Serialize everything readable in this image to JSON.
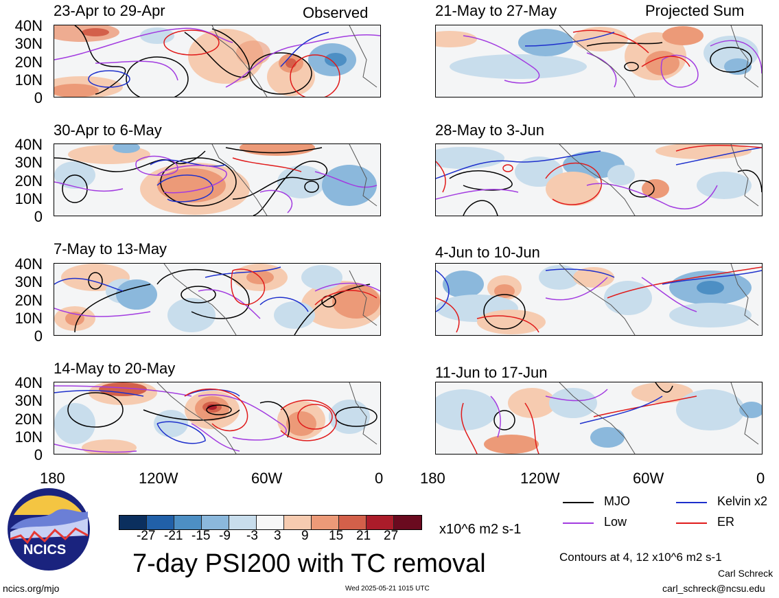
{
  "header": {
    "observed_label": "Observed",
    "projected_label": "Projected Sum"
  },
  "panels": [
    {
      "title": "23-Apr to 29-Apr",
      "column": "observed"
    },
    {
      "title": "30-Apr to 6-May",
      "column": "observed"
    },
    {
      "title": "7-May to 13-May",
      "column": "observed"
    },
    {
      "title": "14-May to 20-May",
      "column": "observed"
    },
    {
      "title": "21-May to 27-May",
      "column": "projected"
    },
    {
      "title": "28-May to 3-Jun",
      "column": "projected"
    },
    {
      "title": "4-Jun to 10-Jun",
      "column": "projected"
    },
    {
      "title": "11-Jun to 17-Jun",
      "column": "projected"
    }
  ],
  "axes": {
    "lat_labels": [
      "40N",
      "30N",
      "20N",
      "10N",
      "0"
    ],
    "lon_labels": [
      "180",
      "120W",
      "60W",
      "0"
    ]
  },
  "colorbar": {
    "labels": [
      "-27",
      "-21",
      "-15",
      "-9",
      "-3",
      "3",
      "9",
      "15",
      "21",
      "27"
    ],
    "units": "x10^6 m2 s-1",
    "colors": [
      "#0b2f5e",
      "#2160a8",
      "#4d8fc4",
      "#8bb8dc",
      "#c8ddec",
      "#f7f7f7",
      "#f6cbb0",
      "#ec9a78",
      "#d3604a",
      "#ab1c2a",
      "#6a0a1f"
    ]
  },
  "legend": {
    "items": [
      {
        "label": "MJO",
        "color": "#000000"
      },
      {
        "label": "Kelvin x2",
        "color": "#1d2fcc"
      },
      {
        "label": "Low",
        "color": "#a23be0"
      },
      {
        "label": "ER",
        "color": "#e01a1a"
      }
    ],
    "contour_note": "Contours at 4, 12 x10^6 m2 s-1"
  },
  "footer": {
    "main_title": "7-day PSI200 with TC removal",
    "url": "ncics.org/mjo",
    "timestamp": "Wed 2025-05-21 1015 UTC",
    "author": "Carl Schreck",
    "email": "carl_schreck@ncsu.edu",
    "logo_text": "NCICS"
  }
}
